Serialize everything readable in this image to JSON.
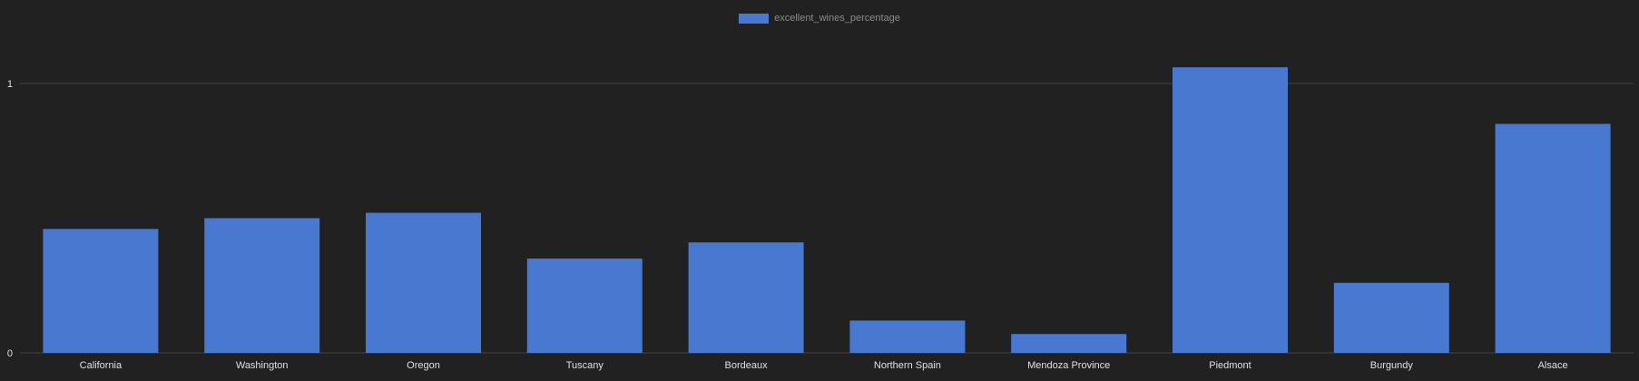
{
  "chart_data": {
    "type": "bar",
    "categories": [
      "California",
      "Washington",
      "Oregon",
      "Tuscany",
      "Bordeaux",
      "Northern Spain",
      "Mendoza Province",
      "Piedmont",
      "Burgundy",
      "Alsace"
    ],
    "series": [
      {
        "name": "excellent_wines_percentage",
        "values": [
          0.46,
          0.5,
          0.52,
          0.35,
          0.41,
          0.12,
          0.07,
          1.06,
          0.26,
          0.85
        ],
        "color": "#4878cf"
      }
    ],
    "yticks": [
      "0",
      "1"
    ],
    "ylim": [
      0,
      1.12
    ],
    "grid": true,
    "legend_position": "top-center",
    "background": "#212121"
  }
}
